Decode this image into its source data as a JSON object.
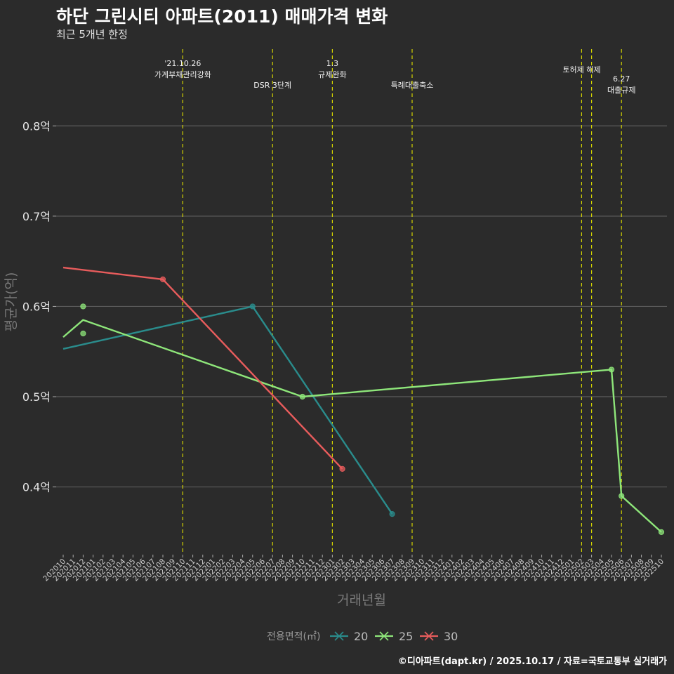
{
  "title": "하단 그린시티 아파트(2011) 매매가격 변화",
  "subtitle": "최근 5개년 한정",
  "caption": "©디아파트(dapt.kr) / 2025.10.17 / 자료=국토교통부 실거래가",
  "colors": {
    "background": "#2b2b2b",
    "grid": "#5c5c5c",
    "event_line": "#d4d400",
    "s20": "#2a8c8c",
    "s25": "#8ee67a",
    "s30": "#e85c5c"
  },
  "chart_data": {
    "type": "line",
    "title": "하단 그린시티 아파트(2011) 매매가격 변화",
    "subtitle": "최근 5개년 한정",
    "xlabel": "거래년월",
    "ylabel": "평균가(억)",
    "ylim": [
      0.325,
      0.885
    ],
    "yticks": [
      {
        "value": 0.4,
        "label": "0.4억"
      },
      {
        "value": 0.5,
        "label": "0.5억"
      },
      {
        "value": 0.6,
        "label": "0.6억"
      },
      {
        "value": 0.7,
        "label": "0.7억"
      },
      {
        "value": 0.8,
        "label": "0.8억"
      }
    ],
    "x_categories": [
      "202010",
      "202011",
      "202012",
      "202101",
      "202102",
      "202103",
      "202104",
      "202105",
      "202106",
      "202107",
      "202108",
      "202109",
      "202110",
      "202111",
      "202112",
      "202201",
      "202202",
      "202203",
      "202204",
      "202205",
      "202206",
      "202207",
      "202208",
      "202209",
      "202210",
      "202211",
      "202212",
      "202301",
      "202302",
      "202303",
      "202304",
      "202305",
      "202306",
      "202307",
      "202308",
      "202309",
      "202310",
      "202311",
      "202312",
      "202401",
      "202402",
      "202403",
      "202404",
      "202405",
      "202406",
      "202407",
      "202408",
      "202409",
      "202410",
      "202411",
      "202412",
      "202501",
      "202502",
      "202503",
      "202504",
      "202505",
      "202506",
      "202507",
      "202508",
      "202509",
      "202510"
    ],
    "legend": {
      "title": "전용면적(㎡)",
      "position": "bottom"
    },
    "series": [
      {
        "name": "20",
        "color": "#2a8c8c",
        "line": [
          [
            "202010",
            0.553
          ],
          [
            "202205",
            0.6
          ],
          [
            "202307",
            0.37
          ]
        ],
        "points": [
          [
            "202205",
            0.6
          ],
          [
            "202307",
            0.37
          ]
        ]
      },
      {
        "name": "25",
        "color": "#8ee67a",
        "line": [
          [
            "202010",
            0.566
          ],
          [
            "202012",
            0.585
          ],
          [
            "202210",
            0.5
          ],
          [
            "202505",
            0.53
          ],
          [
            "202506",
            0.39
          ],
          [
            "202510",
            0.35
          ]
        ],
        "points": [
          [
            "202012",
            0.6
          ],
          [
            "202012",
            0.57
          ],
          [
            "202210",
            0.5
          ],
          [
            "202505",
            0.53
          ],
          [
            "202506",
            0.39
          ],
          [
            "202510",
            0.35
          ]
        ]
      },
      {
        "name": "30",
        "color": "#e85c5c",
        "line": [
          [
            "202010",
            0.643
          ],
          [
            "202108",
            0.63
          ],
          [
            "202302",
            0.42
          ]
        ],
        "points": [
          [
            "202108",
            0.63
          ],
          [
            "202302",
            0.42
          ]
        ]
      }
    ],
    "events": [
      {
        "x": "202110",
        "lines": [
          "'21.10.26",
          "가계부채관리강화"
        ],
        "level": "high"
      },
      {
        "x": "202207",
        "lines": [
          "DSR 3단계"
        ],
        "level": "low"
      },
      {
        "x": "202301",
        "lines": [
          "1.3",
          "규제완화"
        ],
        "level": "high"
      },
      {
        "x": "202309",
        "lines": [
          "특례대출축소"
        ],
        "level": "low"
      },
      {
        "x": "202502",
        "lines": [
          "토허제 해제"
        ],
        "level": "mid"
      },
      {
        "x": "202503",
        "lines": [],
        "level": "mid"
      },
      {
        "x": "202506",
        "lines": [
          "6.27",
          "대출규제"
        ],
        "level": "lowest"
      }
    ]
  }
}
